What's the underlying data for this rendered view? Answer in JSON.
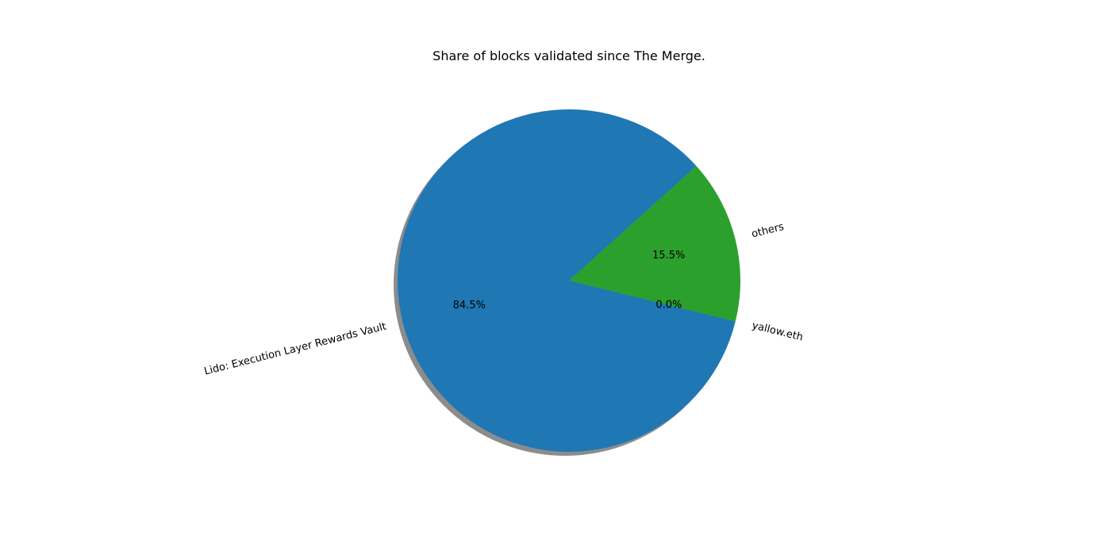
{
  "chart_data": {
    "type": "pie",
    "title": "Share of blocks validated since The Merge.",
    "slices": [
      {
        "label": "Lido: Execution Layer Rewards Vault",
        "value": 84.5,
        "pct_label": "84.5%",
        "color": "#1f77b4"
      },
      {
        "label": "yallow.eth",
        "value": 0.0,
        "pct_label": "0.0%",
        "color": "#ff7f0e"
      },
      {
        "label": "others",
        "value": 15.5,
        "pct_label": "15.5%",
        "color": "#2ca02c"
      }
    ],
    "start_angle_deg": 42,
    "shadow": true,
    "shadow_color": "#808080",
    "legend": "none"
  }
}
